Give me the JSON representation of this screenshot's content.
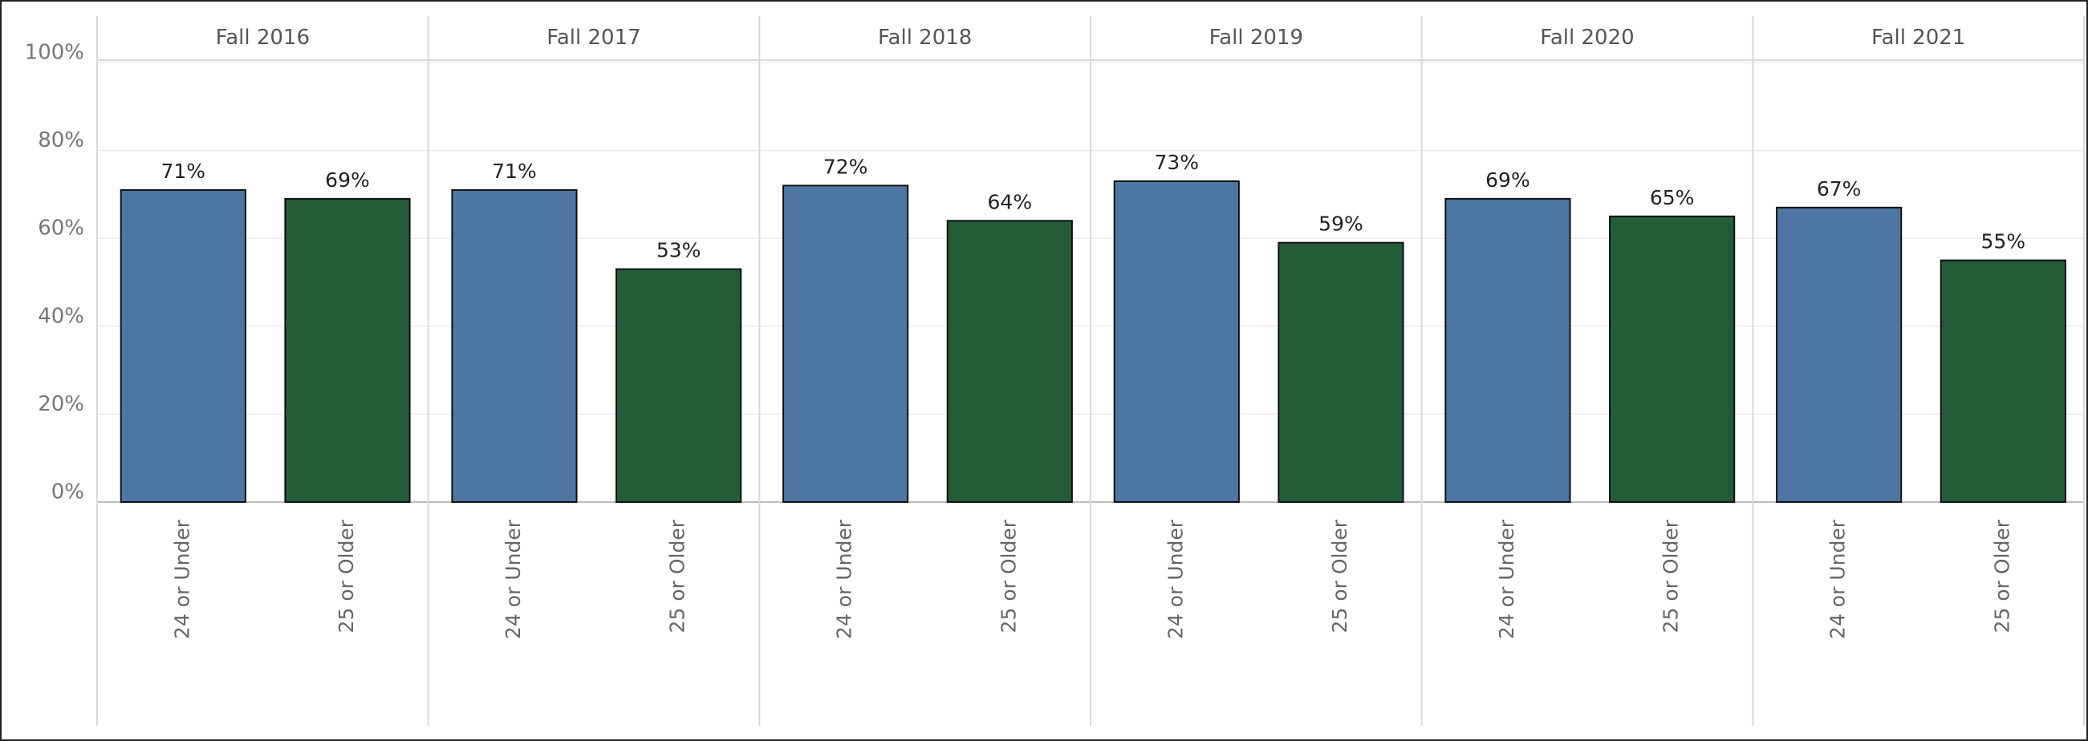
{
  "chart_data": {
    "type": "bar",
    "categories": [
      "Fall 2016",
      "Fall 2017",
      "Fall 2018",
      "Fall 2019",
      "Fall 2020",
      "Fall 2021"
    ],
    "series": [
      {
        "name": "24 or Under",
        "color": "#4e76a3",
        "values": [
          71,
          71,
          72,
          73,
          69,
          67
        ],
        "value_labels": [
          "71%",
          "71%",
          "72%",
          "73%",
          "69%",
          "67%"
        ]
      },
      {
        "name": "25 or Older",
        "color": "#245c38",
        "values": [
          69,
          53,
          64,
          59,
          65,
          55
        ],
        "value_labels": [
          "69%",
          "53%",
          "64%",
          "59%",
          "65%",
          "55%"
        ]
      }
    ],
    "ylim": [
      0,
      100
    ],
    "yticks": [
      {
        "value": 0,
        "label": "0%"
      },
      {
        "value": 20,
        "label": "20%"
      },
      {
        "value": 40,
        "label": "40%"
      },
      {
        "value": 60,
        "label": "60%"
      },
      {
        "value": 80,
        "label": "80%"
      },
      {
        "value": 100,
        "label": "100%"
      }
    ],
    "grid": true
  }
}
